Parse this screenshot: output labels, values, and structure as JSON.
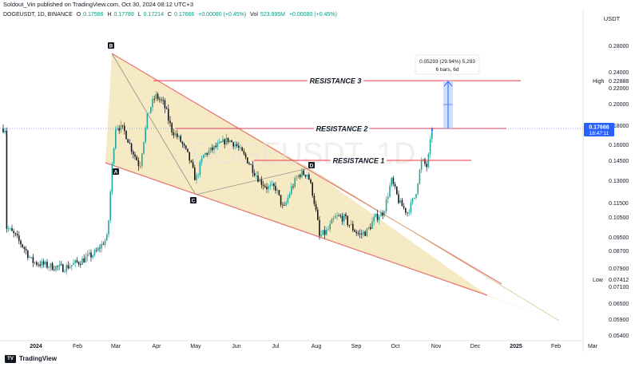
{
  "header": {
    "published_text": "Soldout_Vin published on TradingView.com, Oct 30, 2024 08:12 UTC+3"
  },
  "ohlc": {
    "symbol": "DOGEUSDT, 1D, BINANCE",
    "open_label": "O",
    "open": "0.17586",
    "high_label": "H",
    "high": "0.17789",
    "low_label": "L",
    "low": "0.17214",
    "close_label": "C",
    "close": "0.17666",
    "change": "+0.00080 (+0.45%)",
    "volume_label": "Vol",
    "volume": "523.995M",
    "volume_change": "+0.00080 (+0.45%)"
  },
  "watermark": "DOGEUSDT, 1D",
  "footer": {
    "brand": "TradingView",
    "logo_mark": "TV"
  },
  "chart_data": {
    "type": "candlestick",
    "currency_label": "USDT",
    "price_axis_ticks": [
      "0.28000",
      "0.24000",
      "0.22000",
      "0.20000",
      "0.18000",
      "0.16000",
      "0.14500",
      "0.13000",
      "0.11500",
      "0.10500",
      "0.09500",
      "0.08700",
      "0.07900",
      "0.07100",
      "0.06500",
      "0.05900",
      "0.05400"
    ],
    "x_tick_labels": [
      "2024",
      "Feb",
      "Mar",
      "Apr",
      "May",
      "Jun",
      "Jul",
      "Aug",
      "Sep",
      "Oct",
      "Nov",
      "Dec",
      "2025",
      "Feb",
      "Mar"
    ],
    "current_price": "0.17666",
    "countdown": "18:47:11",
    "high_marker": {
      "label": "High",
      "value": "0.22888"
    },
    "low_marker": {
      "label": "Low",
      "value": "0.07412"
    },
    "resistance_levels": [
      {
        "label": "RESISTANCE 3",
        "value": 0.2289
      },
      {
        "label": "RESISTANCE 2",
        "value": 0.1767
      },
      {
        "label": "RESISTANCE 1",
        "value": 0.145
      }
    ],
    "pattern_points": [
      "A",
      "B",
      "C",
      "D"
    ],
    "projection_box": {
      "line1": "0.05293 (29.94%) 5,293",
      "line2": "6 bars, 6d"
    },
    "colors": {
      "up": "#26a69a",
      "down": "#131722",
      "resistance": "#f23645",
      "pattern_fill": "#f3e3b2",
      "triangle_line": "#e57373",
      "projection": "#2962ff"
    }
  }
}
